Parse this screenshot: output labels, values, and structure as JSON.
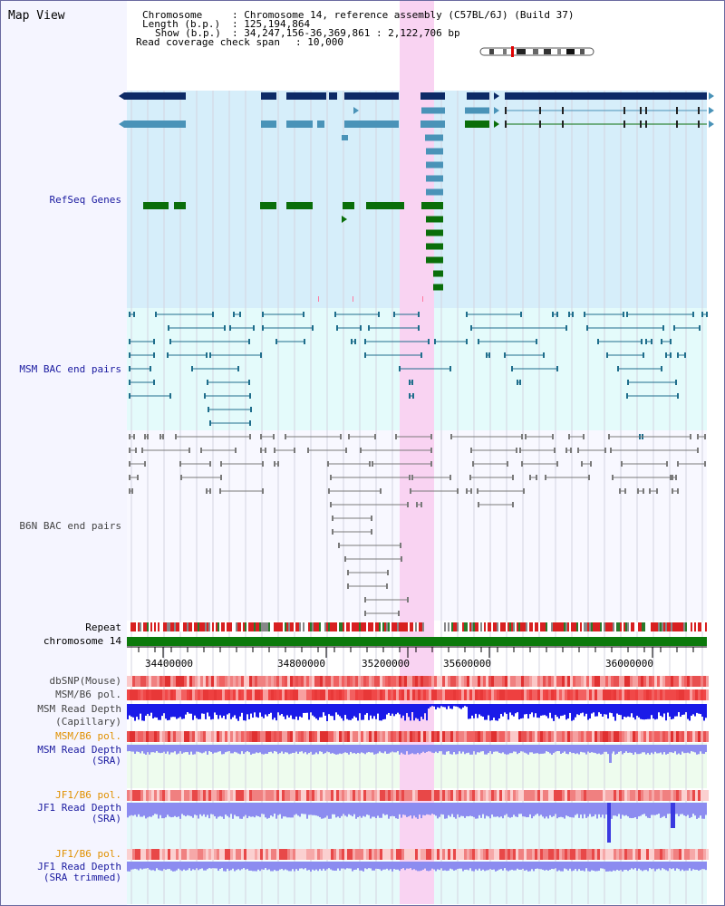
{
  "title": "Map View",
  "header": {
    "chromosome_key": "Chromosome",
    "chromosome_value": ": Chromosome 14, reference assembly (C57BL/6J) (Build 37)",
    "length_key": "Length (b.p.)",
    "length_value": ": 125,194,864",
    "show_key": "Show (b.p.)",
    "show_value": ": 34,247,156-36,369,861 : 2,122,706 bp",
    "span_key": "Read coverage check span",
    "span_value": ": 10,000"
  },
  "tracks": {
    "refseq": "RefSeq Genes",
    "msm_bac": "MSM BAC end pairs",
    "b6n_bac": "B6N BAC end pairs",
    "repeat": "Repeat",
    "chromosome": "chromosome 14",
    "dbsnp": "dbSNP(Mouse)",
    "msm_b6_pol": "MSM/B6 pol.",
    "msm_depth_cap_1": "MSM Read Depth",
    "msm_depth_cap_2": "(Capillary)",
    "msm_b6_pol_2": "MSM/B6 pol.",
    "msm_depth_sra_1": "MSM Read Depth",
    "msm_depth_sra_2": "(SRA)",
    "jf1_b6_pol": "JF1/B6 pol.",
    "jf1_depth_sra_1": "JF1 Read Depth",
    "jf1_depth_sra_2": "(SRA)",
    "jf1_b6_pol_2": "JF1/B6 pol.",
    "jf1_depth_trim_1": "JF1 Read Depth",
    "jf1_depth_trim_2": "(SRA trimmed)"
  },
  "axis": {
    "ticks": [
      "34400000",
      "34800000",
      "35200000",
      "35600000",
      "36000000"
    ]
  },
  "colors": {
    "refseq_bg": "#d6eefa",
    "msm_bg": "#e4fbfb",
    "highlight": "#f9d3f2",
    "navy_gene": "#0d2a66",
    "light_gene": "#4a93b8",
    "green_gene": "#0a6e0a",
    "chromosome_bar": "#0b7a0b",
    "depth_blue": "#1a1ae8",
    "depth_light": "#8c8cf0"
  }
}
